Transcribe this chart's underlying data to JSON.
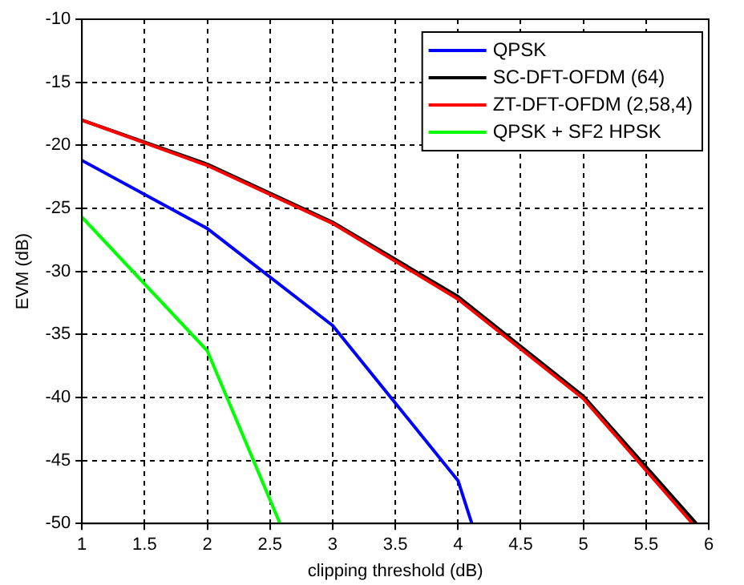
{
  "chart_data": {
    "type": "line",
    "xlabel": "clipping threshold (dB)",
    "ylabel": "EVM (dB)",
    "xlim": [
      1,
      6
    ],
    "xticks": [
      1,
      1.5,
      2,
      2.5,
      3,
      3.5,
      4,
      4.5,
      5,
      5.5,
      6
    ],
    "ylim": [
      -50,
      -10
    ],
    "yticks": [
      -50,
      -45,
      -40,
      -35,
      -30,
      -25,
      -20,
      -15,
      -10
    ],
    "grid": true,
    "legend": "top right",
    "marker": "none",
    "line_style": "solid",
    "series": [
      {
        "name": "QPSK",
        "color": "#0000ff",
        "x": [
          1,
          2,
          3,
          4,
          4.11
        ],
        "values": [
          -21.2,
          -26.6,
          -34.3,
          -46.6,
          -50
        ]
      },
      {
        "name": "SC-DFT-OFDM (64)",
        "color": "#000000",
        "x": [
          1,
          2,
          3,
          4,
          5,
          5.9
        ],
        "values": [
          -18,
          -21.5,
          -26.1,
          -32,
          -39.9,
          -50
        ]
      },
      {
        "name": "ZT-DFT-OFDM (2,58,4)",
        "color": "#ff0000",
        "x": [
          1,
          2,
          3,
          4,
          5,
          5.87
        ],
        "values": [
          -18,
          -21.6,
          -26.2,
          -32.2,
          -40.1,
          -50
        ]
      },
      {
        "name": "QPSK + SF2 HPSK",
        "color": "#00ff00",
        "x": [
          1,
          2,
          2.58
        ],
        "values": [
          -25.7,
          -36.3,
          -50
        ]
      }
    ]
  }
}
